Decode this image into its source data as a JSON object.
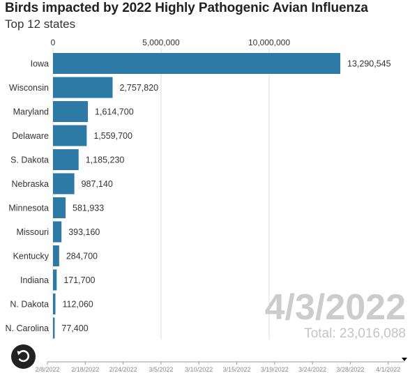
{
  "chart_data": {
    "type": "bar",
    "orientation": "horizontal",
    "title": "Birds impacted by 2022 Highly Pathogenic Avian Influenza",
    "subtitle": "Top 12 states",
    "categories": [
      "Iowa",
      "Wisconsin",
      "Maryland",
      "Delaware",
      "S. Dakota",
      "Nebraska",
      "Minnesota",
      "Missouri",
      "Kentucky",
      "Indiana",
      "N. Dakota",
      "N. Carolina"
    ],
    "values": [
      13290545,
      2757820,
      1614700,
      1559700,
      1185230,
      987140,
      581933,
      393160,
      284700,
      171700,
      112060,
      77400
    ],
    "value_labels": [
      "13,290,545",
      "2,757,820",
      "1,614,700",
      "1,559,700",
      "1,185,230",
      "987,140",
      "581,933",
      "393,160",
      "284,700",
      "171,700",
      "112,060",
      "77,400"
    ],
    "x_ticks": [
      0,
      5000000,
      10000000
    ],
    "x_tick_labels": [
      "0",
      "5,000,000",
      "10,000,000"
    ],
    "xlim": [
      0,
      16000000
    ],
    "grid": true,
    "current_date": "4/3/2022",
    "total_label": "Total: 23,016,088",
    "timeline_labels": [
      "2/8/2022",
      "2/18/2022",
      "2/24/2022",
      "3/5/2022",
      "3/10/2022",
      "3/15/2022",
      "3/19/2022",
      "3/24/2022",
      "3/28/2022",
      "4/1/2022"
    ],
    "colors": {
      "bar": "#2e7aa6",
      "grid": "#dddddd",
      "date": "#cccccc",
      "total": "#c4c4c4"
    }
  },
  "controls": {
    "replay_icon": "replay-icon"
  }
}
